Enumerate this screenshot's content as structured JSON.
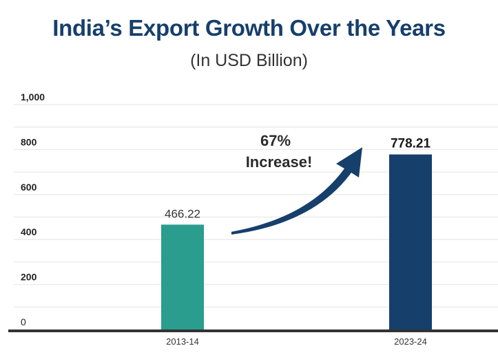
{
  "chart_data": {
    "type": "bar",
    "title": "India’s Export Growth Over the Years",
    "subtitle": "(In USD Billion)",
    "categories": [
      "2013-14",
      "2023-24"
    ],
    "values": [
      466.22,
      778.21
    ],
    "value_labels": [
      "466.22",
      "778.21"
    ],
    "bar_colors": [
      "#2a9d8f",
      "#163f6b"
    ],
    "ylim": [
      0,
      1000
    ],
    "y_ticks": [
      0,
      200,
      400,
      600,
      800,
      1000
    ],
    "y_tick_labels": [
      "0",
      "200",
      "400",
      "600",
      "800",
      "1,000"
    ],
    "grid": true,
    "xlabel": "",
    "ylabel": "",
    "annotation": {
      "line1": "67%",
      "line2": "Increase!",
      "arrow_color": "#163f6b"
    }
  }
}
